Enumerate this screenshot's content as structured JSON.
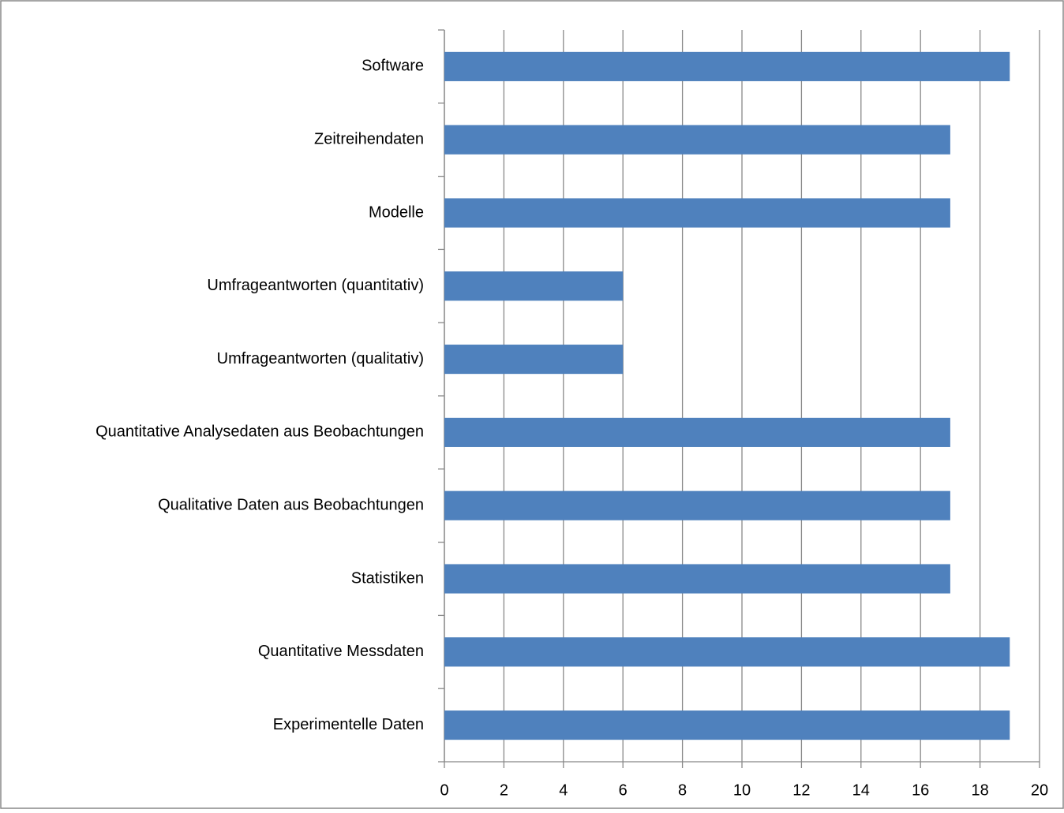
{
  "chart_data": {
    "type": "bar",
    "orientation": "horizontal",
    "categories": [
      "Software",
      "Zeitreihendaten",
      "Modelle",
      "Umfrageantworten (quantitativ)",
      "Umfrageantworten (qualitativ)",
      "Quantitative Analysedaten aus Beobachtungen",
      "Qualitative Daten aus Beobachtungen",
      "Statistiken",
      "Quantitative Messdaten",
      "Experimentelle Daten"
    ],
    "values": [
      19,
      17,
      17,
      6,
      6,
      17,
      17,
      17,
      19,
      19
    ],
    "color": "#4f81bd",
    "xlim": [
      0,
      20
    ],
    "xticks": [
      0,
      2,
      4,
      6,
      8,
      10,
      12,
      14,
      16,
      18,
      20
    ],
    "grid": true
  }
}
